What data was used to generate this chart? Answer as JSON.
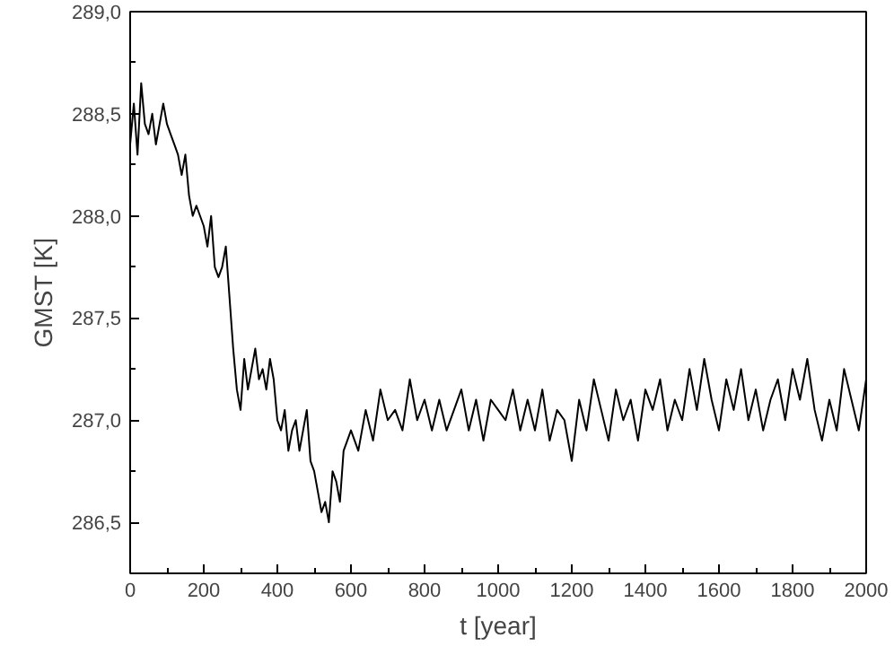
{
  "chart_data": {
    "type": "line",
    "xlabel": "t [year]",
    "ylabel": "GMST [K]",
    "xlim": [
      0,
      2000
    ],
    "xticks": [
      0,
      200,
      400,
      600,
      800,
      1000,
      1200,
      1400,
      1600,
      1800,
      2000
    ],
    "ylim": [
      286.25,
      289.0
    ],
    "yticks": [
      {
        "value": 286.5,
        "label": "286,5"
      },
      {
        "value": 287.0,
        "label": "287,0"
      },
      {
        "value": 287.5,
        "label": "287,5"
      },
      {
        "value": 288.0,
        "label": "288,0"
      },
      {
        "value": 288.5,
        "label": "288,5"
      },
      {
        "value": 289.0,
        "label": "289,0"
      }
    ],
    "grid": false,
    "marker": "none",
    "line_style": "solid",
    "x": [
      0,
      10,
      20,
      30,
      40,
      50,
      60,
      70,
      80,
      90,
      100,
      110,
      120,
      130,
      140,
      150,
      160,
      170,
      180,
      200,
      210,
      220,
      230,
      240,
      250,
      260,
      270,
      280,
      290,
      300,
      310,
      320,
      330,
      340,
      350,
      360,
      370,
      380,
      390,
      400,
      410,
      420,
      430,
      440,
      450,
      460,
      470,
      480,
      490,
      500,
      510,
      520,
      530,
      540,
      550,
      560,
      570,
      580,
      590,
      600,
      620,
      640,
      660,
      680,
      700,
      720,
      740,
      760,
      780,
      800,
      820,
      840,
      860,
      880,
      900,
      920,
      940,
      960,
      980,
      1000,
      1020,
      1040,
      1060,
      1080,
      1100,
      1120,
      1140,
      1160,
      1180,
      1200,
      1220,
      1240,
      1260,
      1280,
      1300,
      1320,
      1340,
      1360,
      1380,
      1400,
      1420,
      1440,
      1460,
      1480,
      1500,
      1520,
      1540,
      1560,
      1580,
      1600,
      1620,
      1640,
      1660,
      1680,
      1700,
      1720,
      1740,
      1760,
      1780,
      1800,
      1820,
      1840,
      1860,
      1880,
      1900,
      1920,
      1940,
      1960,
      1980,
      2000
    ],
    "series": [
      {
        "color": "#000000",
        "values": [
          288.35,
          288.55,
          288.3,
          288.65,
          288.45,
          288.4,
          288.5,
          288.35,
          288.45,
          288.55,
          288.45,
          288.4,
          288.35,
          288.3,
          288.2,
          288.3,
          288.1,
          288.0,
          288.05,
          287.95,
          287.85,
          288.0,
          287.75,
          287.7,
          287.75,
          287.85,
          287.6,
          287.35,
          287.15,
          287.05,
          287.3,
          287.15,
          287.25,
          287.35,
          287.2,
          287.25,
          287.15,
          287.3,
          287.2,
          287.0,
          286.95,
          287.05,
          286.85,
          286.95,
          287.0,
          286.85,
          286.95,
          287.05,
          286.8,
          286.75,
          286.65,
          286.55,
          286.6,
          286.5,
          286.75,
          286.7,
          286.6,
          286.85,
          286.9,
          286.95,
          286.85,
          287.05,
          286.9,
          287.15,
          287.0,
          287.05,
          286.95,
          287.2,
          287.0,
          287.1,
          286.95,
          287.1,
          286.95,
          287.05,
          287.15,
          286.95,
          287.1,
          286.9,
          287.1,
          287.05,
          287.0,
          287.15,
          286.95,
          287.1,
          286.95,
          287.15,
          286.9,
          287.05,
          287.0,
          286.8,
          287.1,
          286.95,
          287.2,
          287.05,
          286.9,
          287.15,
          287.0,
          287.1,
          286.9,
          287.15,
          287.05,
          287.2,
          286.95,
          287.1,
          287.0,
          287.25,
          287.05,
          287.3,
          287.1,
          286.95,
          287.2,
          287.05,
          287.25,
          287.0,
          287.15,
          286.95,
          287.1,
          287.2,
          287.0,
          287.25,
          287.1,
          287.3,
          287.05,
          286.9,
          287.1,
          286.95,
          287.25,
          287.1,
          286.95,
          287.2
        ]
      }
    ]
  }
}
